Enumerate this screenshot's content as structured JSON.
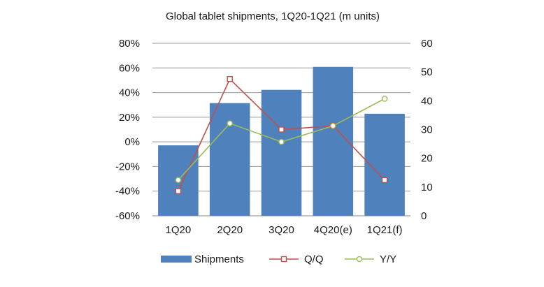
{
  "chart_data": {
    "type": "bar",
    "title": "Global tablet shipments, 1Q20-1Q21 (m units)",
    "categories": [
      "1Q20",
      "2Q20",
      "3Q20",
      "4Q20(e)",
      "1Q21(f)"
    ],
    "xlabel": "",
    "ylabel": "",
    "y_left": {
      "range": [
        -60,
        80
      ],
      "step": 20,
      "format": "percent",
      "ticks": [
        "80%",
        "60%",
        "40%",
        "20%",
        "0%",
        "-20%",
        "-40%",
        "-60%"
      ]
    },
    "y_right": {
      "range": [
        0,
        60
      ],
      "step": 10,
      "ticks": [
        "60",
        "50",
        "40",
        "30",
        "20",
        "10",
        "0"
      ]
    },
    "grid": true,
    "legend_position": "bottom",
    "series": [
      {
        "name": "Shipments",
        "type": "bar",
        "axis": "right",
        "values": [
          24.5,
          39.2,
          43.8,
          51.8,
          35.5
        ],
        "color": "#4f81bd"
      },
      {
        "name": "Q/Q",
        "type": "line",
        "axis": "left",
        "marker": "square",
        "values": [
          -40,
          51,
          10,
          13,
          -31
        ],
        "color": "#c0504d"
      },
      {
        "name": "Y/Y",
        "type": "line",
        "axis": "left",
        "marker": "circle",
        "values": [
          -31,
          15,
          0,
          13,
          35
        ],
        "color": "#9bbb59"
      }
    ]
  }
}
